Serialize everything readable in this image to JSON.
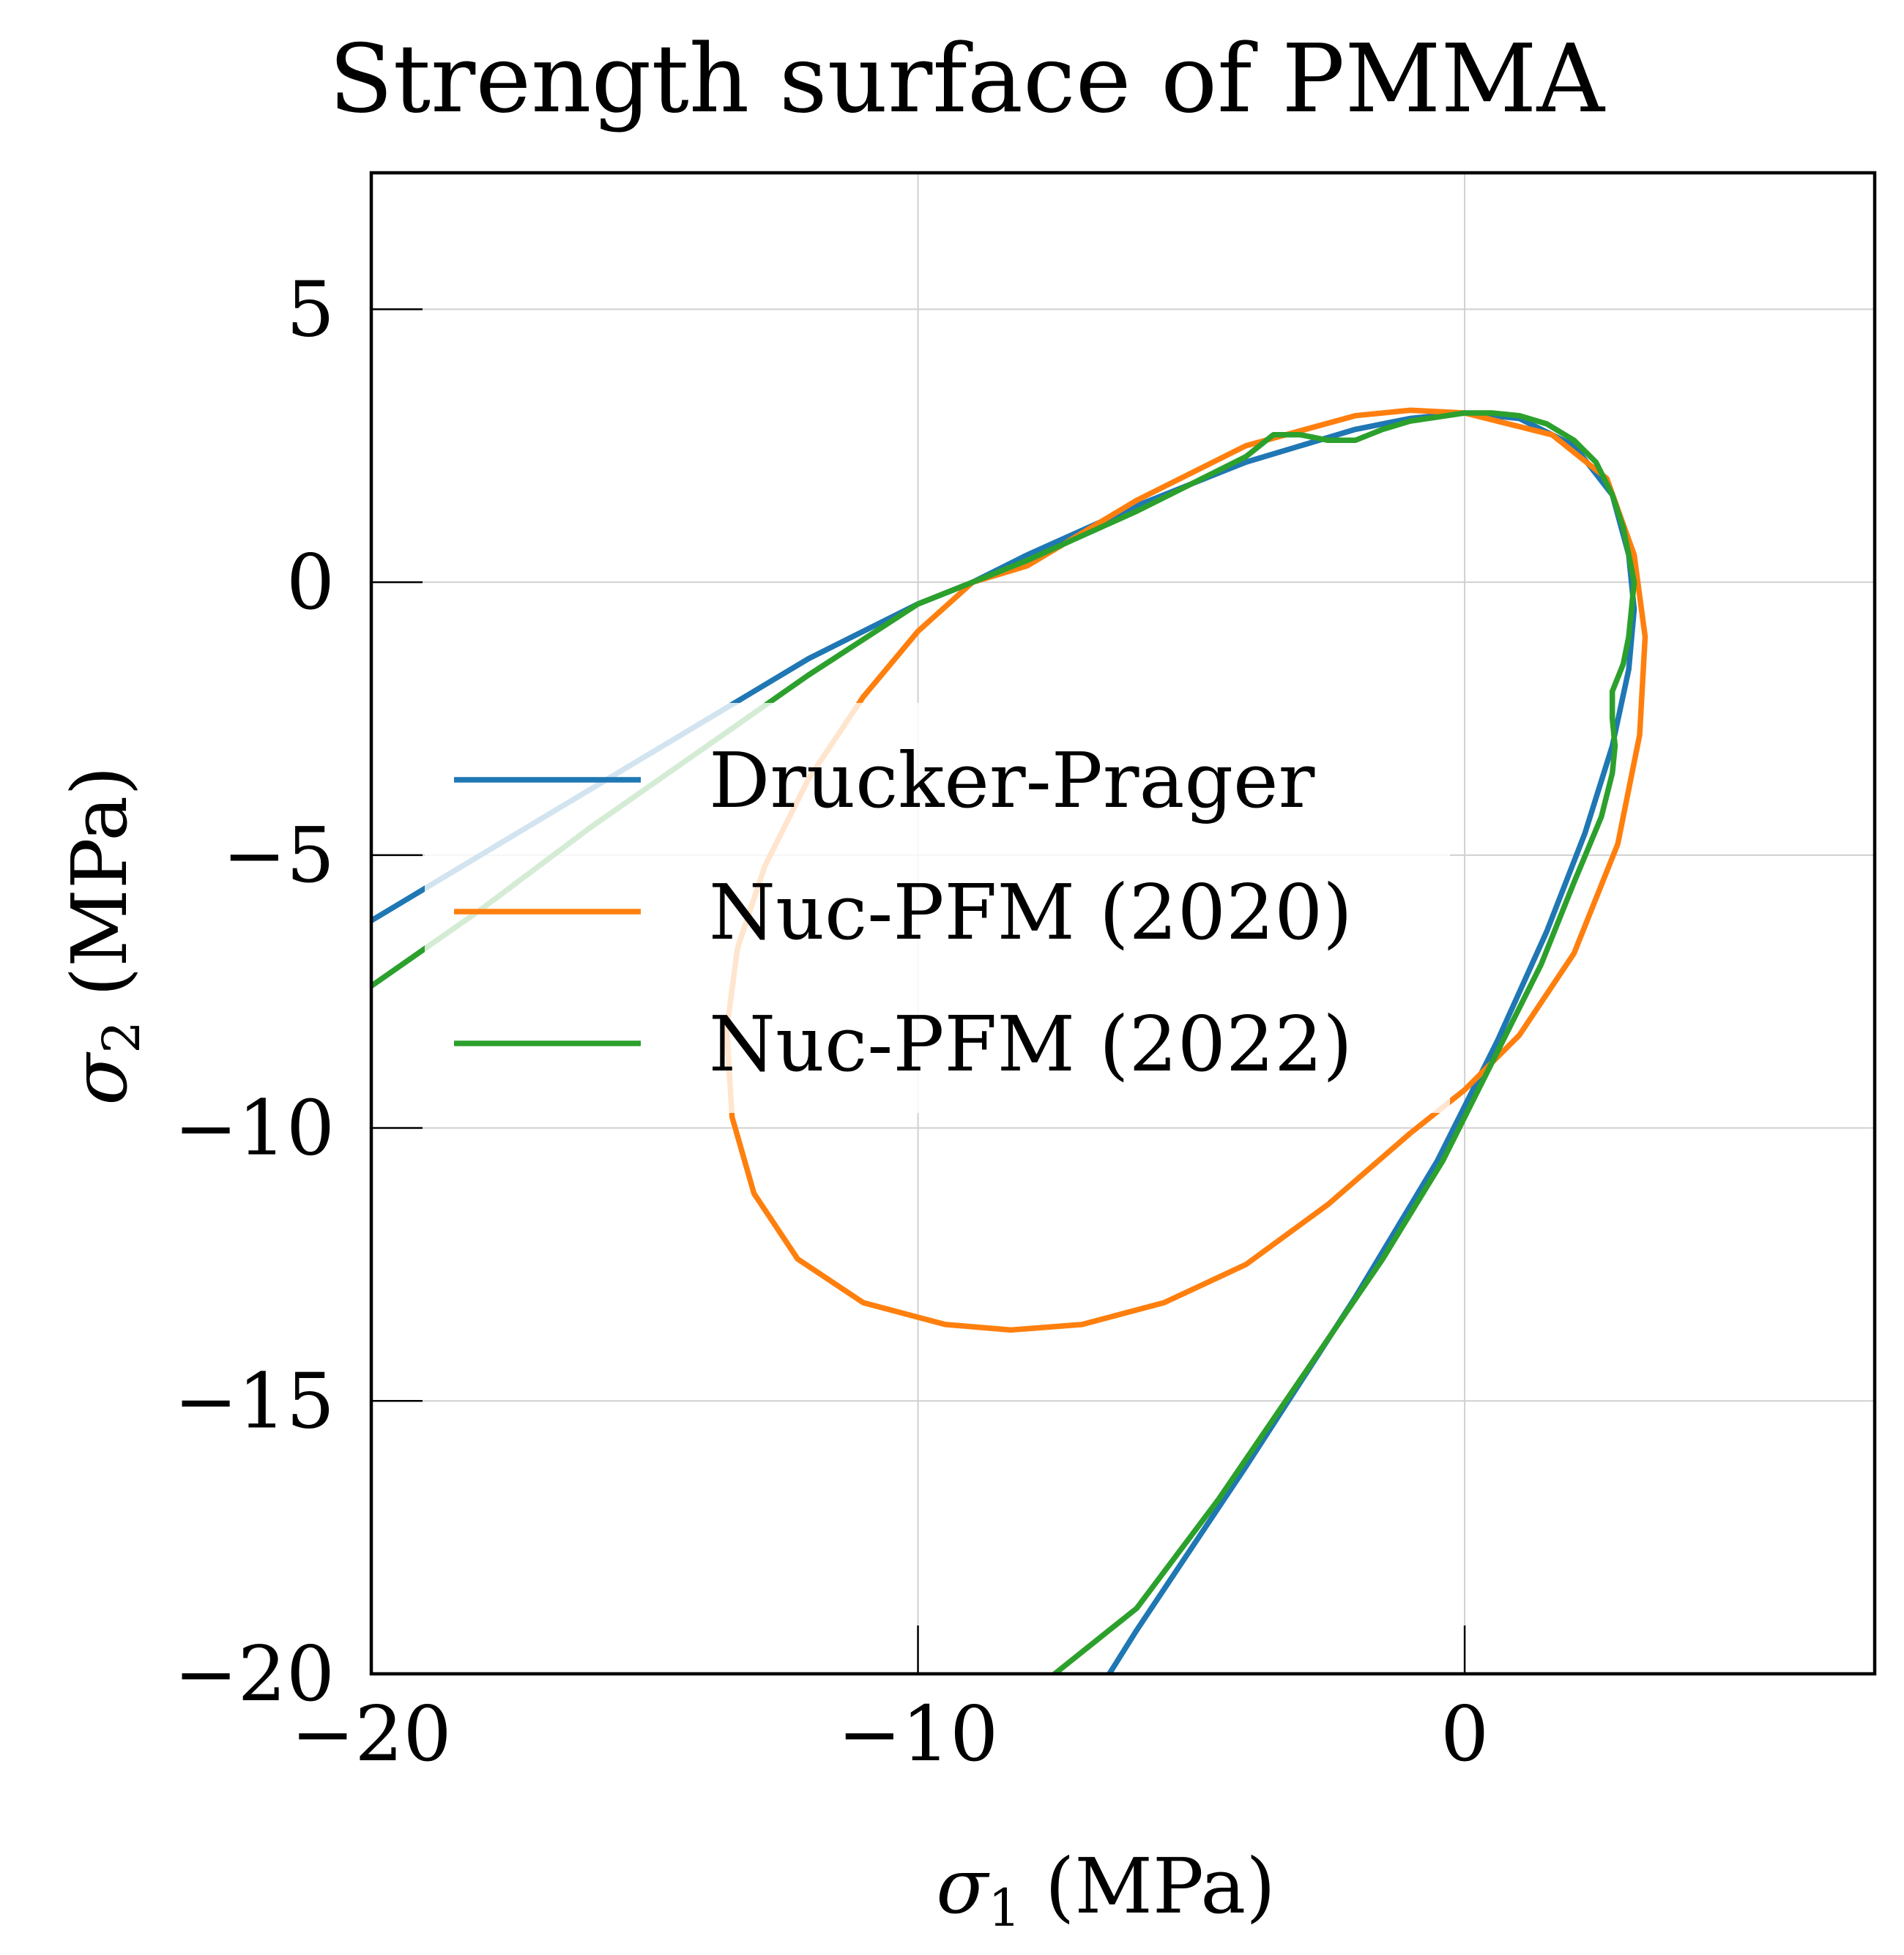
{
  "chart_data": {
    "type": "line",
    "title": "Strength surface of PMMA",
    "xlabel": "σ1 (MPa)",
    "ylabel": "σ2 (MPa)",
    "xlim": [
      -20,
      7.5
    ],
    "ylim": [
      -20,
      7.5
    ],
    "xticks": [
      -20,
      -10,
      0
    ],
    "xtick_labels": [
      "−20",
      "−10",
      "0"
    ],
    "yticks": [
      -20,
      -15,
      -10,
      -5,
      0,
      5
    ],
    "ytick_labels": [
      "−20",
      "−15",
      "−10",
      "−5",
      "0",
      "5"
    ],
    "grid": true,
    "legend_position": "center-left",
    "series": [
      {
        "name": "Drucker-Prager",
        "color": "#1f77b4",
        "x": [
          -20.0,
          -18.0,
          -16.0,
          -14.0,
          -12.0,
          -10.0,
          -9.0,
          -8.0,
          -6.0,
          -4.0,
          -2.0,
          -1.0,
          0.0,
          1.0,
          2.0,
          2.7,
          3.0,
          3.1,
          3.0,
          2.7,
          2.2,
          1.5,
          0.6,
          -0.5,
          -2.0,
          -4.0,
          -6.0,
          -6.5
        ],
        "y": [
          -6.2,
          -5.0,
          -3.8,
          -2.6,
          -1.4,
          -0.4,
          0.0,
          0.5,
          1.4,
          2.2,
          2.8,
          3.0,
          3.1,
          3.0,
          2.5,
          1.6,
          0.5,
          -0.5,
          -1.6,
          -3.0,
          -4.6,
          -6.4,
          -8.4,
          -10.6,
          -13.1,
          -16.2,
          -19.2,
          -20.0
        ]
      },
      {
        "name": "Nuc-PFM (2020)",
        "color": "#ff7f0e",
        "x": [
          0.0,
          -1.0,
          -2.0,
          -4.0,
          -6.0,
          -8.0,
          -9.0,
          -10.0,
          -11.0,
          -12.0,
          -12.8,
          -13.3,
          -13.5,
          -13.4,
          -13.0,
          -12.2,
          -11.0,
          -9.5,
          -8.3,
          -7.0,
          -5.5,
          -4.0,
          -2.5,
          -1.0,
          0.0,
          1.0,
          2.0,
          2.8,
          3.2,
          3.3,
          3.1,
          2.6,
          1.6,
          0.0
        ],
        "y": [
          3.1,
          3.15,
          3.05,
          2.5,
          1.5,
          0.3,
          0.0,
          -0.9,
          -2.1,
          -3.6,
          -5.2,
          -6.7,
          -8.2,
          -9.8,
          -11.2,
          -12.4,
          -13.2,
          -13.6,
          -13.7,
          -13.6,
          -13.2,
          -12.5,
          -11.4,
          -10.1,
          -9.3,
          -8.3,
          -6.8,
          -4.8,
          -2.8,
          -1.0,
          0.5,
          1.9,
          2.7,
          3.1
        ]
      },
      {
        "name": "Nuc-PFM (2022)",
        "color": "#2ca02c",
        "x": [
          -20.0,
          -18.0,
          -16.0,
          -14.0,
          -12.0,
          -10.0,
          -9.0,
          -8.0,
          -6.0,
          -4.0,
          -3.5,
          -3.0,
          -2.5,
          -2.0,
          -1.5,
          -1.0,
          0.0,
          0.5,
          1.0,
          1.5,
          2.0,
          2.4,
          2.7,
          2.9,
          3.0,
          3.1,
          3.05,
          3.0,
          2.9,
          2.7,
          2.7,
          2.75,
          2.7,
          2.5,
          2.0,
          1.4,
          0.6,
          -0.4,
          -1.5,
          -3.0,
          -4.5,
          -6.0,
          -7.5
        ],
        "y": [
          -7.4,
          -6.0,
          -4.5,
          -3.1,
          -1.7,
          -0.4,
          0.0,
          0.4,
          1.3,
          2.3,
          2.7,
          2.7,
          2.6,
          2.6,
          2.8,
          2.95,
          3.1,
          3.1,
          3.05,
          2.9,
          2.6,
          2.2,
          1.6,
          1.0,
          0.5,
          0.0,
          -0.5,
          -1.0,
          -1.5,
          -2.0,
          -2.5,
          -3.0,
          -3.5,
          -4.3,
          -5.5,
          -7.0,
          -8.6,
          -10.6,
          -12.4,
          -14.6,
          -16.8,
          -18.8,
          -20.0
        ]
      }
    ]
  }
}
